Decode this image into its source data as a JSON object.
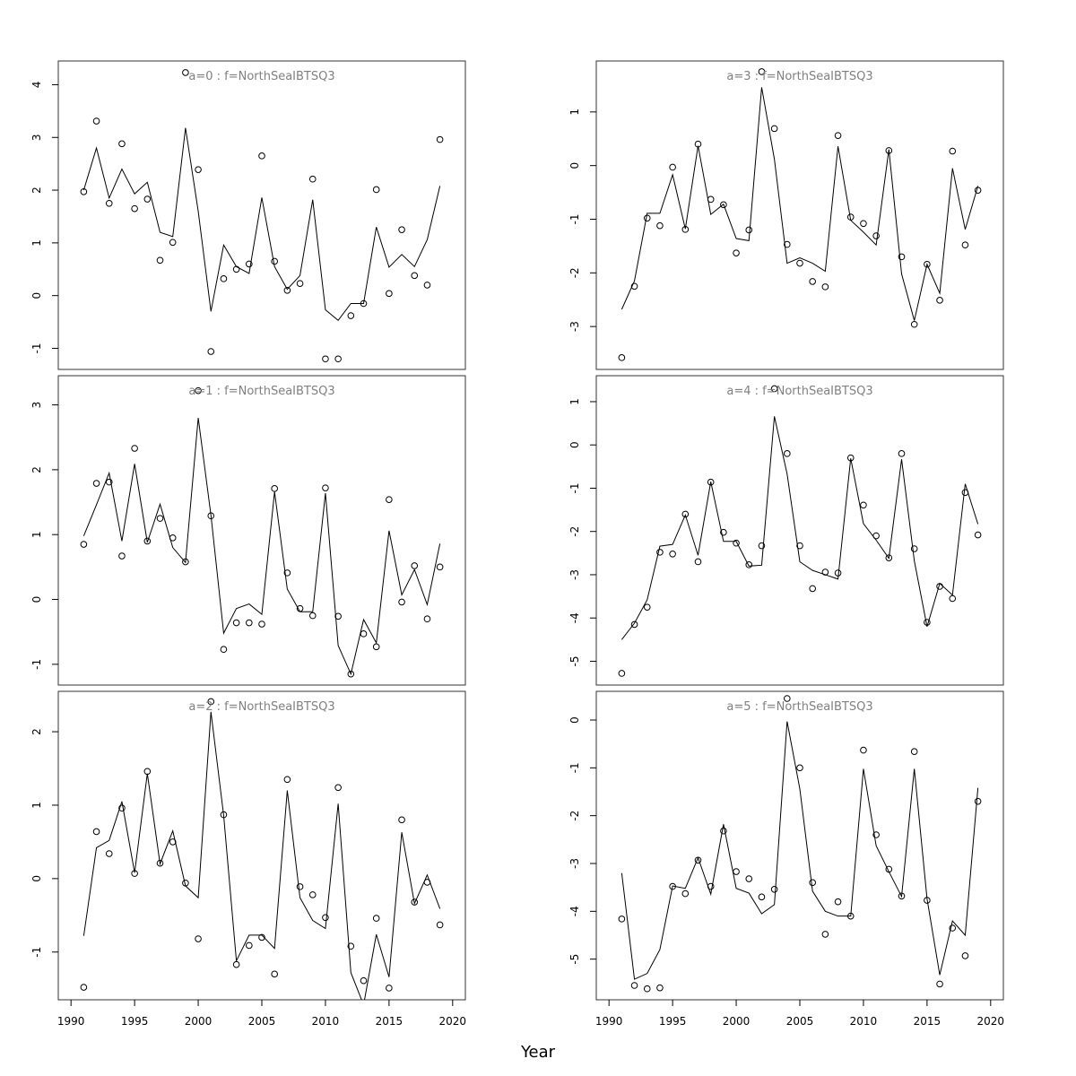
{
  "chart_data": {
    "type": "line",
    "xlabel": "Year",
    "xlim": [
      1989,
      2021
    ],
    "xticks": [
      1990,
      1995,
      2000,
      2005,
      2010,
      2015,
      2020
    ],
    "years": [
      1991,
      1992,
      1993,
      1994,
      1995,
      1996,
      1997,
      1998,
      1999,
      2000,
      2001,
      2002,
      2003,
      2004,
      2005,
      2006,
      2007,
      2008,
      2009,
      2010,
      2011,
      2012,
      2013,
      2014,
      2015,
      2016,
      2017,
      2018,
      2019
    ],
    "panels": [
      {
        "title": "a=0  :  f=NorthSeaIBTSQ3",
        "ylim": [
          -1.4,
          4.45
        ],
        "yticks": [
          -1,
          0,
          1,
          2,
          3,
          4
        ],
        "line": [
          2.0,
          2.8,
          1.85,
          2.4,
          1.93,
          2.15,
          1.2,
          1.12,
          3.18,
          1.6,
          -0.3,
          0.96,
          0.55,
          0.42,
          1.86,
          0.55,
          0.12,
          0.38,
          1.82,
          -0.27,
          -0.47,
          -0.15,
          -0.15,
          1.3,
          0.54,
          0.78,
          0.55,
          1.06,
          2.08
        ],
        "points": [
          1.97,
          3.31,
          1.75,
          2.88,
          1.65,
          1.83,
          0.67,
          1.01,
          4.23,
          2.39,
          -1.06,
          0.32,
          0.5,
          0.6,
          2.65,
          0.65,
          0.1,
          0.23,
          2.21,
          -1.2,
          -1.2,
          -0.38,
          -0.15,
          2.01,
          0.04,
          1.25,
          0.38,
          0.2,
          2.96
        ]
      },
      {
        "title": "a=1  :  f=NorthSeaIBTSQ3",
        "ylim": [
          -1.32,
          3.45
        ],
        "yticks": [
          -1,
          0,
          1,
          2,
          3
        ],
        "line": [
          0.98,
          1.46,
          1.95,
          0.9,
          2.09,
          0.88,
          1.47,
          0.8,
          0.57,
          2.8,
          1.3,
          -0.52,
          -0.14,
          -0.07,
          -0.23,
          1.66,
          0.16,
          -0.19,
          -0.19,
          1.64,
          -0.71,
          -1.15,
          -0.31,
          -0.67,
          1.06,
          0.07,
          0.46,
          -0.08,
          0.86
        ],
        "points": [
          0.85,
          1.79,
          1.81,
          0.67,
          2.33,
          0.9,
          1.25,
          0.95,
          0.58,
          3.22,
          1.29,
          -0.77,
          -0.36,
          -0.36,
          -0.38,
          1.71,
          0.41,
          -0.14,
          -0.25,
          1.72,
          -0.26,
          -1.15,
          -0.53,
          -0.73,
          1.54,
          -0.04,
          0.52,
          -0.3,
          0.5
        ]
      },
      {
        "title": "a=2  :  f=NorthSeaIBTSQ3",
        "ylim": [
          -1.65,
          2.55
        ],
        "yticks": [
          -1,
          0,
          1,
          2
        ],
        "line": [
          -0.78,
          0.42,
          0.52,
          1.05,
          0.08,
          1.43,
          0.2,
          0.65,
          -0.1,
          -0.26,
          2.27,
          0.86,
          -1.12,
          -0.77,
          -0.77,
          -0.95,
          1.2,
          -0.26,
          -0.57,
          -0.68,
          1.02,
          -1.28,
          -1.72,
          -0.76,
          -1.34,
          0.63,
          -0.34,
          0.05,
          -0.41
        ],
        "points": [
          -1.48,
          0.64,
          0.34,
          0.96,
          0.07,
          1.46,
          0.21,
          0.5,
          -0.06,
          -0.82,
          2.41,
          0.87,
          -1.17,
          -0.91,
          -0.8,
          -1.3,
          1.35,
          -0.11,
          -0.22,
          -0.53,
          1.24,
          -0.92,
          -1.39,
          -0.54,
          -1.49,
          0.8,
          -0.32,
          -0.05,
          -0.63
        ]
      },
      {
        "title": "a=3  :  f=NorthSeaIBTSQ3",
        "ylim": [
          -3.8,
          1.95
        ],
        "yticks": [
          -3,
          -2,
          -1,
          0,
          1
        ],
        "line": [
          -2.68,
          -2.15,
          -0.89,
          -0.89,
          -0.17,
          -1.18,
          0.37,
          -0.91,
          -0.72,
          -1.36,
          -1.4,
          1.46,
          0.12,
          -1.82,
          -1.72,
          -1.82,
          -1.97,
          0.36,
          -1.02,
          -1.24,
          -1.48,
          0.3,
          -2.02,
          -2.89,
          -1.84,
          -2.38,
          -0.05,
          -1.19,
          -0.38
        ],
        "points": [
          -3.58,
          -2.25,
          -0.98,
          -1.12,
          -0.03,
          -1.19,
          0.4,
          -0.63,
          -0.73,
          -1.63,
          -1.2,
          1.75,
          0.69,
          -1.47,
          -1.82,
          -2.16,
          -2.26,
          0.56,
          -0.96,
          -1.08,
          -1.31,
          0.28,
          -1.7,
          -2.96,
          -1.84,
          -2.51,
          0.27,
          -1.48,
          -0.46
        ]
      },
      {
        "title": "a=4  :  f=NorthSeaIBTSQ3",
        "ylim": [
          -5.55,
          1.6
        ],
        "yticks": [
          -5,
          -4,
          -3,
          -2,
          -1,
          0,
          1
        ],
        "line": [
          -4.5,
          -4.12,
          -3.58,
          -2.34,
          -2.3,
          -1.62,
          -2.55,
          -0.85,
          -2.23,
          -2.23,
          -2.8,
          -2.78,
          0.66,
          -0.67,
          -2.7,
          -2.9,
          -3.0,
          -3.1,
          -0.31,
          -1.82,
          -2.2,
          -2.62,
          -0.33,
          -2.68,
          -4.2,
          -3.2,
          -3.47,
          -0.9,
          -1.83
        ],
        "points": [
          -5.28,
          -4.15,
          -3.75,
          -2.48,
          -2.52,
          -1.6,
          -2.7,
          -0.86,
          -2.02,
          -2.27,
          -2.77,
          -2.33,
          1.3,
          -0.2,
          -2.33,
          -3.32,
          -2.94,
          -2.96,
          -0.3,
          -1.39,
          -2.1,
          -2.61,
          -0.2,
          -2.4,
          -4.1,
          -3.27,
          -3.55,
          -1.1,
          -2.08
        ]
      },
      {
        "title": "a=5  :  f=NorthSeaIBTSQ3",
        "ylim": [
          -5.85,
          0.6
        ],
        "yticks": [
          -5,
          -4,
          -3,
          -2,
          -1,
          0
        ],
        "line": [
          -3.2,
          -5.42,
          -5.3,
          -4.8,
          -3.47,
          -3.52,
          -2.88,
          -3.64,
          -2.18,
          -3.52,
          -3.62,
          -4.05,
          -3.86,
          -0.03,
          -1.44,
          -3.58,
          -4.0,
          -4.1,
          -4.1,
          -1.02,
          -2.63,
          -3.17,
          -3.69,
          -1.02,
          -3.74,
          -5.33,
          -4.2,
          -4.5,
          -1.42
        ],
        "points": [
          -4.16,
          -5.55,
          -5.62,
          -5.6,
          -3.48,
          -3.63,
          -2.93,
          -3.48,
          -2.32,
          -3.17,
          -3.32,
          -3.7,
          -3.54,
          0.45,
          -1.0,
          -3.4,
          -4.48,
          -3.8,
          -4.1,
          -0.63,
          -2.4,
          -3.12,
          -3.68,
          -0.66,
          -3.77,
          -5.52,
          -4.35,
          -4.93,
          -1.7
        ]
      }
    ]
  }
}
